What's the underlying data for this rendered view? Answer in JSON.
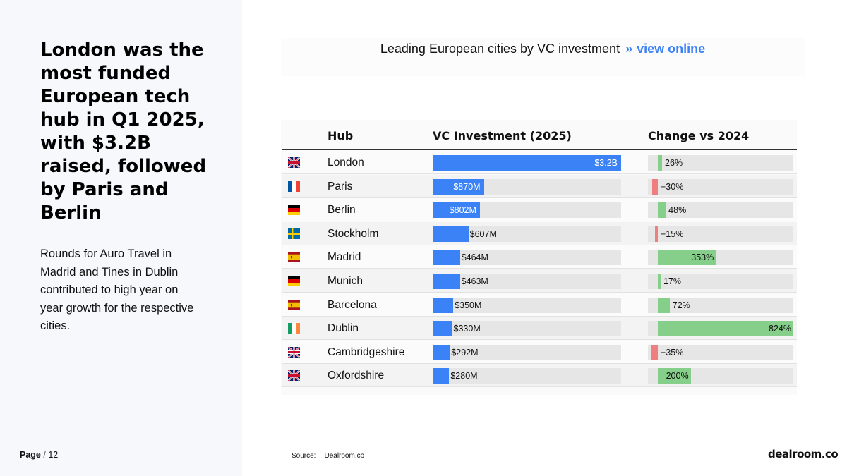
{
  "headline": "London was the most funded European tech hub in Q1 2025, with $3.2B raised, followed by Paris and Berlin",
  "body_text": "Rounds for Auro Travel in Madrid and Tines in Dublin contributed to high year on year growth for the respective cities.",
  "page": {
    "label": "Page",
    "separator": "/",
    "total": "12"
  },
  "chart_header": {
    "title": "Leading European cities by VC investment",
    "arrows": "»",
    "link_text": "view online"
  },
  "source": {
    "label": "Source:",
    "value": "Dealroom.co"
  },
  "logo_text": "dealroom.co",
  "colors": {
    "investment_bar": "#3b82f6",
    "positive_change": "#86cf8a",
    "negative_change": "#ef7f7f",
    "track": "#e6e6e6"
  },
  "chart_data": {
    "type": "table",
    "columns": [
      "Hub",
      "VC Investment (2025)",
      "Change vs 2024"
    ],
    "rows": [
      {
        "flag": "uk-flag-icon",
        "hub": "London",
        "investment": 3200,
        "investment_label": "$3.2B",
        "change": 26,
        "change_label": "26%"
      },
      {
        "flag": "france-flag-icon",
        "hub": "Paris",
        "investment": 870,
        "investment_label": "$870M",
        "change": -30,
        "change_label": "−30%"
      },
      {
        "flag": "germany-flag-icon",
        "hub": "Berlin",
        "investment": 802,
        "investment_label": "$802M",
        "change": 48,
        "change_label": "48%"
      },
      {
        "flag": "sweden-flag-icon",
        "hub": "Stockholm",
        "investment": 607,
        "investment_label": "$607M",
        "change": -15,
        "change_label": "−15%"
      },
      {
        "flag": "spain-flag-icon",
        "hub": "Madrid",
        "investment": 464,
        "investment_label": "$464M",
        "change": 353,
        "change_label": "353%"
      },
      {
        "flag": "germany-flag-icon",
        "hub": "Munich",
        "investment": 463,
        "investment_label": "$463M",
        "change": 17,
        "change_label": "17%"
      },
      {
        "flag": "spain-flag-icon",
        "hub": "Barcelona",
        "investment": 350,
        "investment_label": "$350M",
        "change": 72,
        "change_label": "72%"
      },
      {
        "flag": "ireland-flag-icon",
        "hub": "Dublin",
        "investment": 330,
        "investment_label": "$330M",
        "change": 824,
        "change_label": "824%"
      },
      {
        "flag": "uk-flag-icon",
        "hub": "Cambridgeshire",
        "investment": 292,
        "investment_label": "$292M",
        "change": -35,
        "change_label": "−35%"
      },
      {
        "flag": "uk-flag-icon",
        "hub": "Oxfordshire",
        "investment": 280,
        "investment_label": "$280M",
        "change": 200,
        "change_label": "200%"
      }
    ]
  }
}
